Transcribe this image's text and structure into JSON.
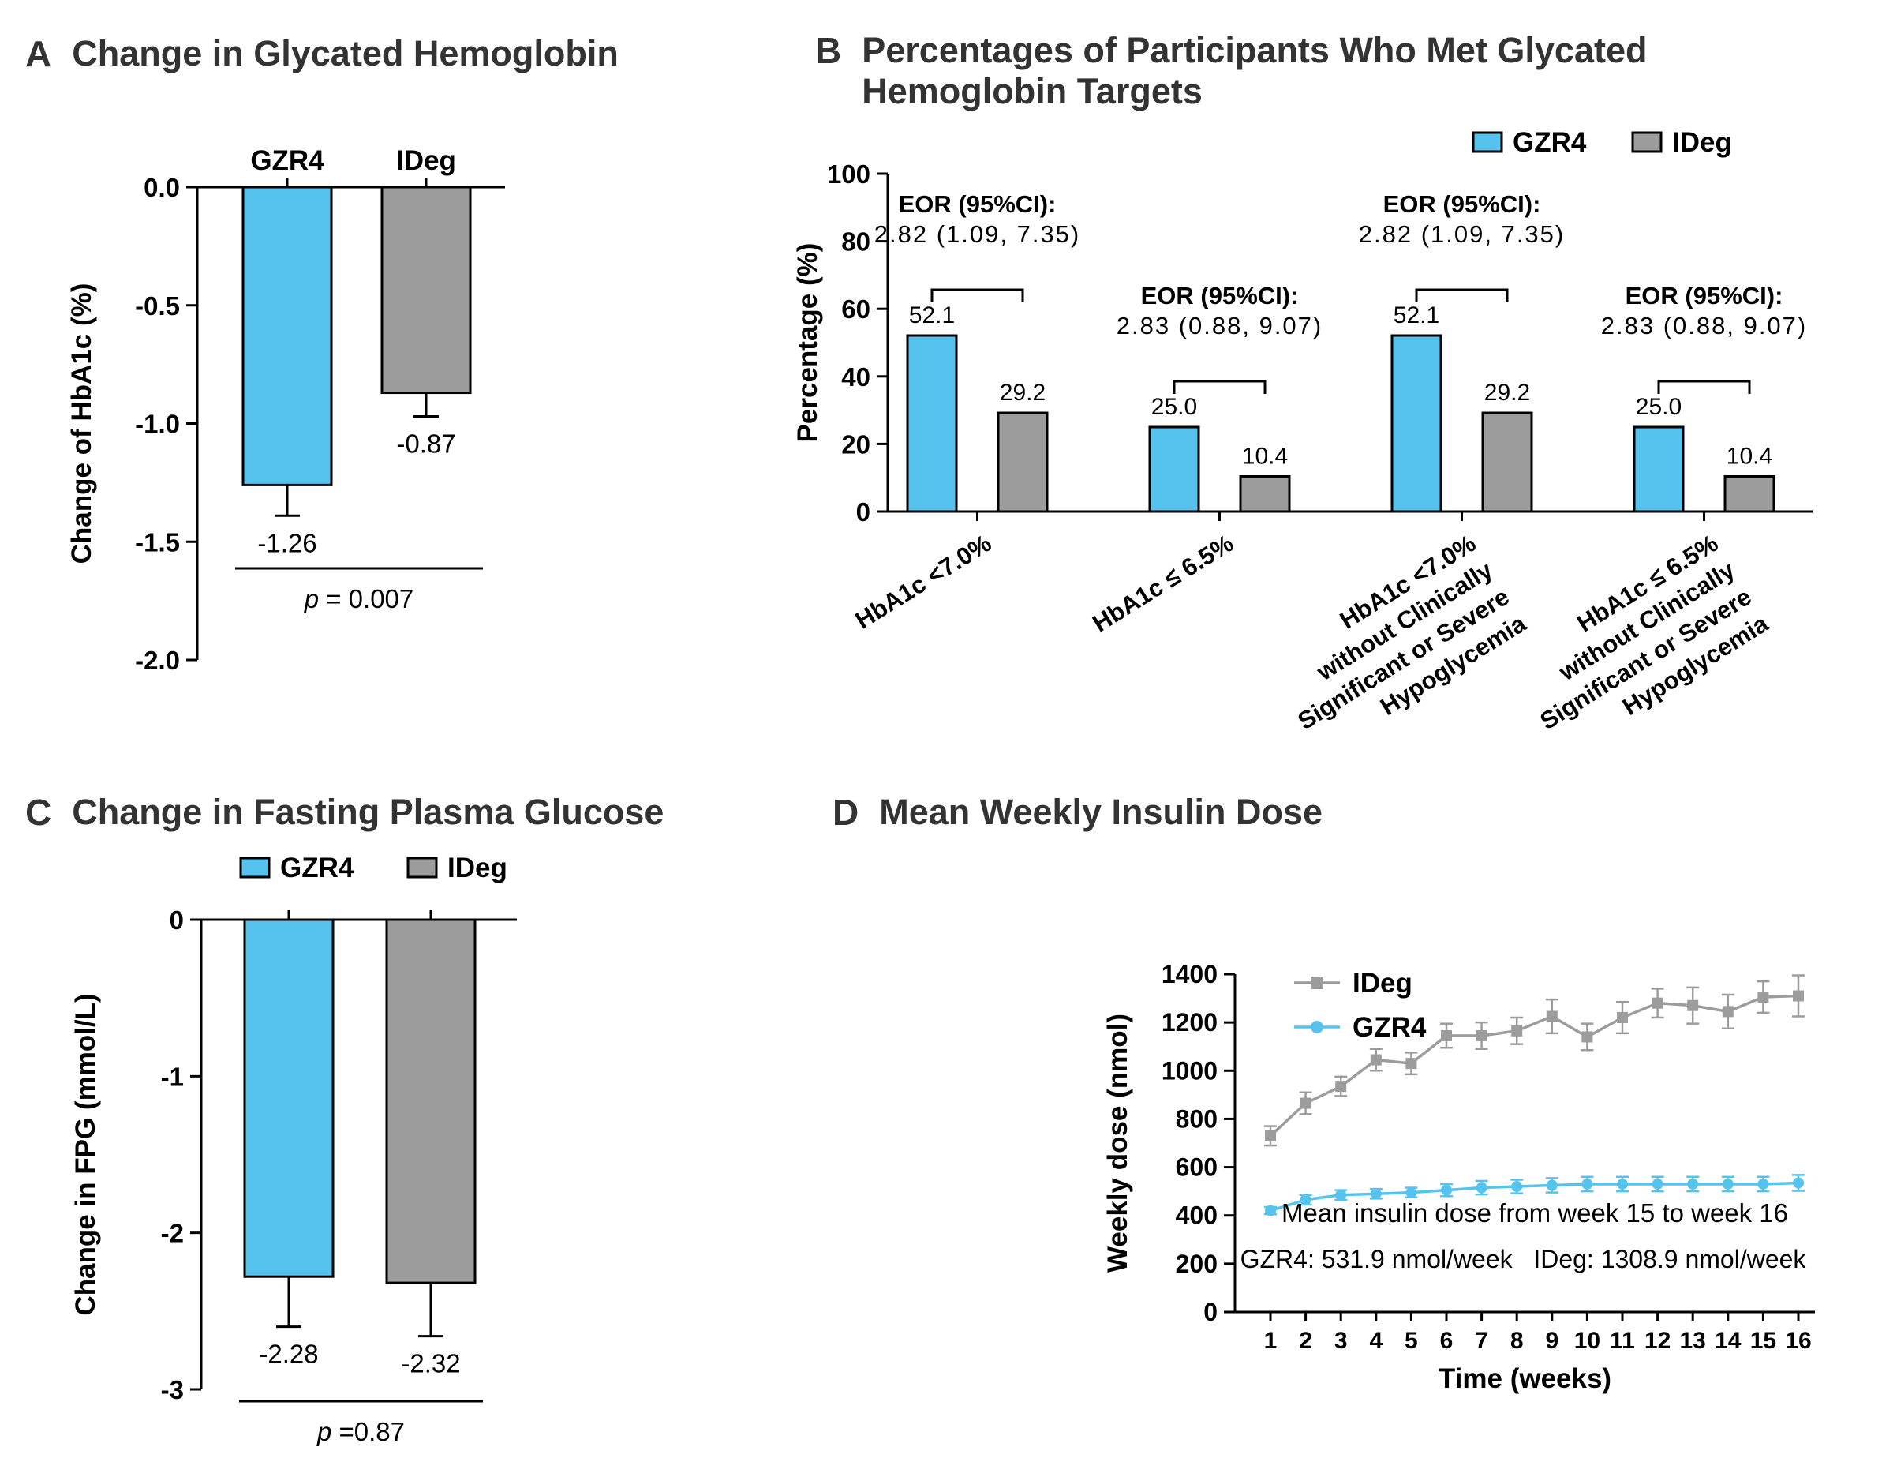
{
  "colors": {
    "gzr4": "#56C3EF",
    "ideg": "#9C9C9C",
    "axis": "#000000",
    "text": "#000000",
    "title": "#333333",
    "background": "#FFFFFF"
  },
  "panels": {
    "a": {
      "letter": "A",
      "title": "Change in Glycated Hemoglobin"
    },
    "b": {
      "letter": "B",
      "title": "Percentages of Participants Who Met Glycated Hemoglobin Targets"
    },
    "c": {
      "letter": "C",
      "title": "Change in Fasting Plasma Glucose"
    },
    "d": {
      "letter": "D",
      "title": "Mean Weekly Insulin Dose"
    }
  },
  "chart_data": [
    {
      "id": "a",
      "type": "bar",
      "title": "Change in Glycated Hemoglobin",
      "categories": [
        "GZR4",
        "IDeg"
      ],
      "values": [
        -1.26,
        -0.87
      ],
      "errors": [
        0.13,
        0.1
      ],
      "value_labels": [
        "-1.26",
        "-0.87"
      ],
      "bar_colors": [
        "gzr4",
        "ideg"
      ],
      "column_labels": [
        "GZR4",
        "IDeg"
      ],
      "ylabel": "Change of HbA1c (%)",
      "ylim": [
        -2.0,
        0.0
      ],
      "yticks": [
        0,
        -0.5,
        -1,
        -1.5,
        -2
      ],
      "ytick_labels": [
        "0.0",
        "-0.5",
        "-1.0",
        "-1.5",
        "-2.0"
      ],
      "p_symbol": "p",
      "p_text": " = 0.007"
    },
    {
      "id": "b",
      "type": "grouped_bar",
      "title": "Percentages of Participants Who Met Glycated Hemoglobin Targets",
      "categories": [
        [
          "HbA1c <7.0%"
        ],
        [
          "HbA1c ≤ 6.5%"
        ],
        [
          "HbA1c <7.0%",
          "without Clinically",
          "Significant or Severe",
          "Hypoglycemia"
        ],
        [
          "HbA1c ≤ 6.5%",
          "without Clinically",
          "Significant or Severe",
          "Hypoglycemia"
        ]
      ],
      "series": [
        {
          "name": "GZR4",
          "color": "gzr4",
          "values": [
            52.1,
            25.0,
            52.1,
            25.0
          ]
        },
        {
          "name": "IDeg",
          "color": "ideg",
          "values": [
            29.2,
            10.4,
            29.2,
            10.4
          ]
        }
      ],
      "annotations": [
        {
          "label": "EOR (95%CI):",
          "value": "2.82 (1.09, 7.35)"
        },
        {
          "label": "EOR (95%CI):",
          "value": "2.83 (0.88, 9.07)"
        },
        {
          "label": "EOR (95%CI):",
          "value": "2.82 (1.09, 7.35)"
        },
        {
          "label": "EOR (95%CI):",
          "value": "2.83 (0.88, 9.07)"
        }
      ],
      "ylabel": "Percentage (%)",
      "ylim": [
        0,
        100
      ],
      "yticks": [
        0,
        20,
        40,
        60,
        80,
        100
      ],
      "ytick_labels": [
        "0",
        "20",
        "40",
        "60",
        "80",
        "100"
      ],
      "legend": [
        "GZR4",
        "IDeg"
      ],
      "legend_position": "top-right"
    },
    {
      "id": "c",
      "type": "bar",
      "title": "Change in Fasting Plasma Glucose",
      "categories": [
        "GZR4",
        "IDeg"
      ],
      "values": [
        -2.28,
        -2.32
      ],
      "errors": [
        0.32,
        0.34
      ],
      "value_labels": [
        "-2.28",
        "-2.32"
      ],
      "bar_colors": [
        "gzr4",
        "ideg"
      ],
      "legend": [
        "GZR4",
        "IDeg"
      ],
      "ylabel": "Change in FPG (mmol/L)",
      "ylim": [
        -3,
        0
      ],
      "yticks": [
        0,
        -1,
        -2,
        -3
      ],
      "ytick_labels": [
        "0",
        "-1",
        "-2",
        "-3"
      ],
      "p_symbol": "p",
      "p_text": " =0.87"
    },
    {
      "id": "d",
      "type": "line",
      "title": "Mean Weekly Insulin Dose",
      "x": [
        1,
        2,
        3,
        4,
        5,
        6,
        7,
        8,
        9,
        10,
        11,
        12,
        13,
        14,
        15,
        16
      ],
      "series": [
        {
          "name": "IDeg",
          "color": "ideg",
          "marker": "square",
          "values": [
            730,
            865,
            935,
            1045,
            1030,
            1145,
            1145,
            1165,
            1225,
            1140,
            1220,
            1280,
            1270,
            1245,
            1305,
            1310
          ],
          "errors": [
            40,
            45,
            40,
            45,
            45,
            50,
            55,
            55,
            70,
            55,
            65,
            60,
            75,
            70,
            65,
            85
          ]
        },
        {
          "name": "GZR4",
          "color": "gzr4",
          "marker": "circle",
          "values": [
            420,
            465,
            485,
            490,
            495,
            505,
            515,
            520,
            525,
            530,
            530,
            530,
            530,
            530,
            530,
            535
          ],
          "errors": [
            15,
            20,
            20,
            20,
            20,
            25,
            28,
            28,
            30,
            30,
            30,
            30,
            30,
            30,
            30,
            33
          ]
        }
      ],
      "xlabel": "Time (weeks)",
      "ylabel": "Weekly dose (nmol)",
      "ylim": [
        0,
        1400
      ],
      "yticks": [
        0,
        200,
        400,
        600,
        800,
        1000,
        1200,
        1400
      ],
      "ytick_labels": [
        "0",
        "200",
        "400",
        "600",
        "800",
        "1000",
        "1200",
        "1400"
      ],
      "legend_position": "top-left-inside",
      "annotation": [
        "Mean insulin dose from week 15 to week 16",
        "GZR4: 531.9 nmol/week   IDeg: 1308.9 nmol/week"
      ]
    }
  ]
}
